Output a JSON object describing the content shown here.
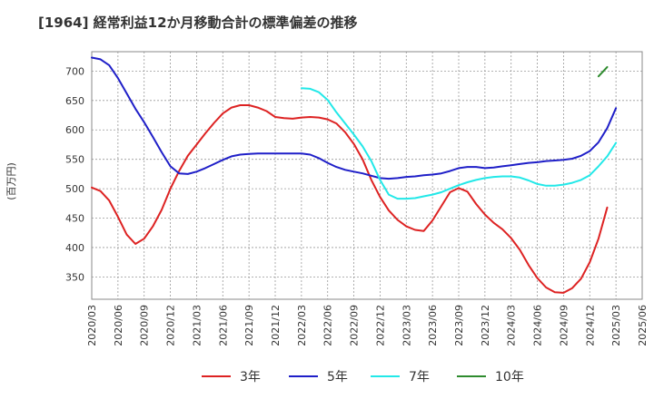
{
  "chart_data": {
    "type": "line",
    "title": "[1964]  経常利益12か月移動合計の標準偏差の推移",
    "ylabel": "(百万円)",
    "xlabel": "",
    "ylim": [
      312,
      733
    ],
    "yticks": [
      350,
      400,
      450,
      500,
      550,
      600,
      650,
      700
    ],
    "x_ticks": [
      "2020/03",
      "2020/06",
      "2020/09",
      "2020/12",
      "2021/03",
      "2021/06",
      "2021/09",
      "2021/12",
      "2022/03",
      "2022/06",
      "2022/09",
      "2022/12",
      "2023/03",
      "2023/06",
      "2023/09",
      "2023/12",
      "2024/03",
      "2024/06",
      "2024/09",
      "2024/12",
      "2025/03",
      "2025/06"
    ],
    "grid": true,
    "legend_position": "bottom",
    "series": [
      {
        "name": "3年",
        "color": "#dd2222",
        "start": "2020/03",
        "values": [
          502,
          496,
          480,
          452,
          422,
          406,
          415,
          436,
          464,
          500,
          530,
          556,
          575,
          594,
          612,
          628,
          638,
          642,
          642,
          638,
          632,
          622,
          620,
          619,
          621,
          622,
          621,
          618,
          611,
          596,
          576,
          550,
          515,
          486,
          463,
          447,
          436,
          430,
          428,
          446,
          470,
          494,
          501,
          495,
          474,
          456,
          442,
          431,
          416,
          396,
          370,
          348,
          332,
          324,
          323,
          331,
          347,
          375,
          415,
          468
        ]
      },
      {
        "name": "5年",
        "color": "#1f1fc8",
        "start": "2020/03",
        "values": [
          723,
          720,
          710,
          688,
          662,
          636,
          613,
          588,
          562,
          538,
          526,
          525,
          529,
          535,
          542,
          549,
          555,
          558,
          559,
          560,
          560,
          560,
          560,
          560,
          560,
          558,
          552,
          544,
          537,
          532,
          529,
          526,
          522,
          518,
          517,
          518,
          520,
          521,
          523,
          524,
          526,
          530,
          535,
          537,
          537,
          535,
          536,
          538,
          540,
          542,
          544,
          545,
          547,
          548,
          549,
          551,
          556,
          564,
          579,
          603,
          637
        ]
      },
      {
        "name": "7年",
        "color": "#22e8e8",
        "start": "2022/03",
        "values": [
          671,
          670,
          664,
          651,
          630,
          611,
          592,
          572,
          547,
          515,
          490,
          483,
          483,
          484,
          487,
          490,
          494,
          500,
          506,
          511,
          515,
          518,
          520,
          521,
          521,
          519,
          514,
          508,
          505,
          505,
          507,
          510,
          515,
          523,
          538,
          555,
          578
        ]
      },
      {
        "name": "10年",
        "color": "#2e8b2e",
        "start": "2025/01",
        "values": [
          691,
          707
        ]
      }
    ]
  }
}
